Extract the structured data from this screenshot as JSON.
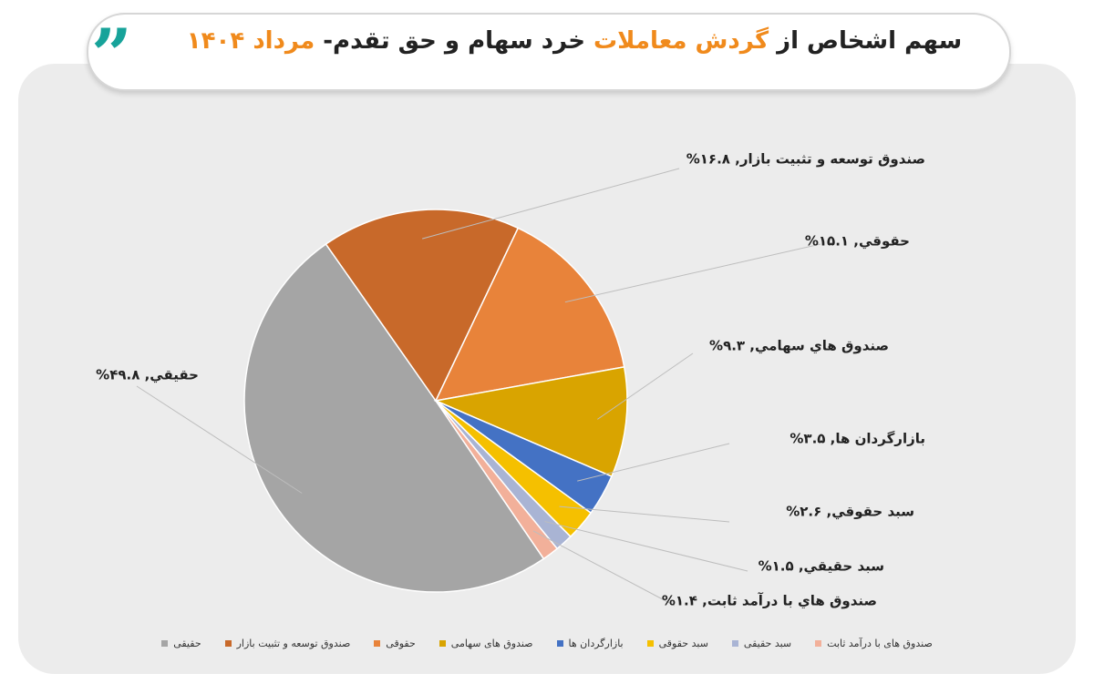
{
  "chart_data": {
    "type": "pie",
    "title": [
      "سهم اشخاص از",
      "گردش معاملات",
      "خرد سهام و حق تقدم-",
      "مرداد ۱۴۰۴"
    ],
    "categories": [
      "حقیقی",
      "صندوق توسعه و تثبیت بازار",
      "حقوقی",
      "صندوق های سهامی",
      "بازارگردان ها",
      "سبد حقوقی",
      "سبد حقیقی",
      "صندوق های با درآمد ثابت"
    ],
    "values": [
      49.8,
      16.8,
      15.1,
      9.3,
      3.5,
      2.6,
      1.5,
      1.4
    ],
    "value_labels": [
      "حقيقي, ۴۹.۸%",
      "صندوق توسعه و تثبيت بازار, ۱۶.۸%",
      "حقوقي, ۱۵.۱%",
      "صندوق هاي سهامي, ۹.۳%",
      "بازارگردان ها, ۳.۵%",
      "سبد حقوقي, ۲.۶%",
      "سبد حقيقي, ۱.۵%",
      "صندوق هاي با درآمد ثابت, ۱.۴%"
    ],
    "colors": [
      "#a5a5a5",
      "#c8692a",
      "#e8833a",
      "#d9a400",
      "#4472c4",
      "#f5c000",
      "#a9b4d4",
      "#f2b09a"
    ]
  }
}
